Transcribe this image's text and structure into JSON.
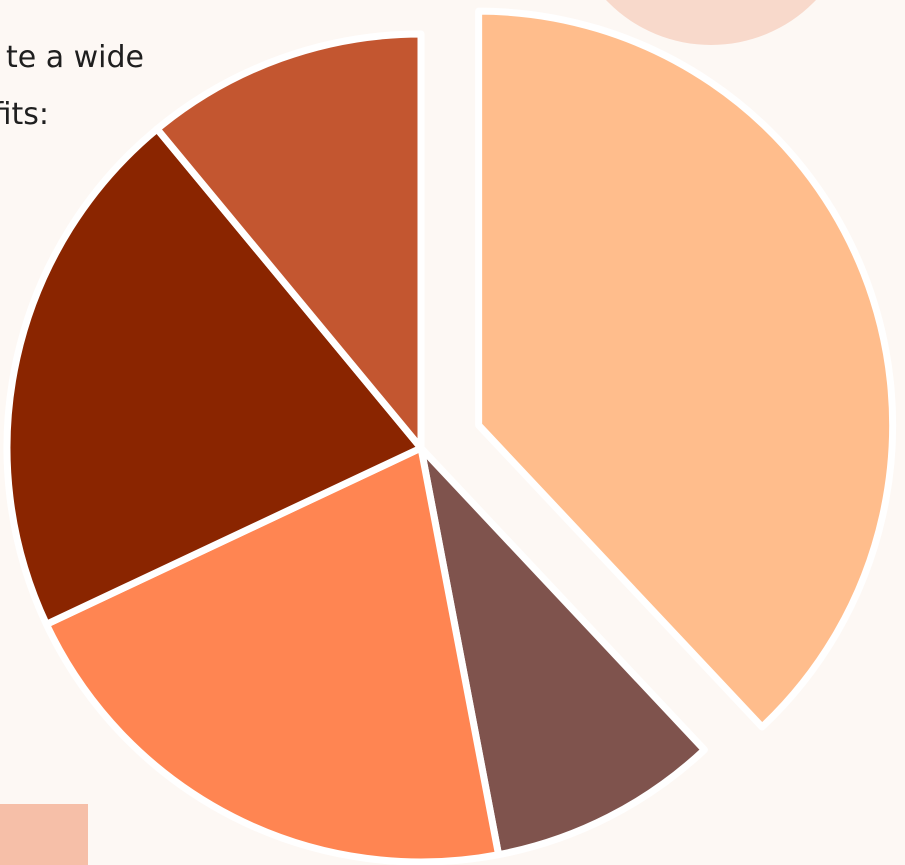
{
  "intro_text": {
    "line1": "te a wide",
    "line2": "fits:"
  },
  "chart_data": {
    "type": "pie",
    "title": "",
    "legend": "none",
    "exploded_slice": 0,
    "slices": [
      {
        "value": 38,
        "color": "#ffbd8c"
      },
      {
        "value": 9,
        "color": "#7f534d"
      },
      {
        "value": 21,
        "color": "#ff8552"
      },
      {
        "value": 21,
        "color": "#8a2500"
      },
      {
        "value": 11,
        "color": "#c35630"
      }
    ]
  }
}
